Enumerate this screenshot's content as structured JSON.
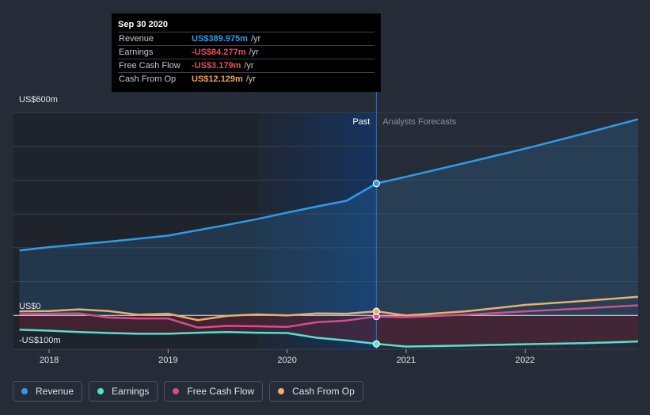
{
  "tooltip": {
    "date": "Sep 30 2020",
    "rows": [
      {
        "label": "Revenue",
        "value": "US$389.975m",
        "unit": "/yr",
        "color": "#2f9be6"
      },
      {
        "label": "Earnings",
        "value": "-US$84.277m",
        "unit": "/yr",
        "color": "#ec4b5e"
      },
      {
        "label": "Free Cash Flow",
        "value": "-US$3.179m",
        "unit": "/yr",
        "color": "#ec4b5e"
      },
      {
        "label": "Cash From Op",
        "value": "US$12.129m",
        "unit": "/yr",
        "color": "#e8a85a"
      }
    ]
  },
  "legend": [
    {
      "label": "Revenue",
      "color": "#2f9be6"
    },
    {
      "label": "Earnings",
      "color": "#55e0d0"
    },
    {
      "label": "Free Cash Flow",
      "color": "#d24f8c"
    },
    {
      "label": "Cash From Op",
      "color": "#e8b06a"
    }
  ],
  "chart_data": {
    "type": "line",
    "y_tick_labels": [
      "US$600m",
      "US$0",
      "-US$100m"
    ],
    "ylim": [
      -100,
      600
    ],
    "xlim": [
      2017.7,
      2022.95
    ],
    "x_tick_labels": [
      "2018",
      "2019",
      "2020",
      "2021",
      "2022"
    ],
    "x_ticks": [
      2018,
      2019,
      2020,
      2021,
      2022
    ],
    "region_labels": {
      "past": "Past",
      "forecast": "Analysts Forecasts"
    },
    "divider_x": 2020.75,
    "highlight_start_x": 2019.75,
    "grid": true,
    "series": [
      {
        "name": "Revenue",
        "color": "#2f9be6",
        "x": [
          2017.75,
          2018.0,
          2018.25,
          2018.5,
          2018.75,
          2019.0,
          2019.25,
          2019.5,
          2019.75,
          2020.0,
          2020.25,
          2020.5,
          2020.75,
          2021.0,
          2021.5,
          2022.0,
          2022.5,
          2022.95
        ],
        "y": [
          192,
          202,
          210,
          218,
          227,
          236,
          252,
          268,
          285,
          304,
          322,
          339,
          390,
          410,
          451,
          493,
          538,
          580
        ]
      },
      {
        "name": "Earnings",
        "color": "#55e0d0",
        "x": [
          2017.75,
          2018.0,
          2018.25,
          2018.5,
          2018.75,
          2019.0,
          2019.25,
          2019.5,
          2019.75,
          2020.0,
          2020.25,
          2020.5,
          2020.75,
          2021.0,
          2021.5,
          2022.0,
          2022.5,
          2022.95
        ],
        "y": [
          -42,
          -45,
          -49,
          -52,
          -54,
          -54,
          -51,
          -49,
          -51,
          -52,
          -66,
          -74,
          -84,
          -92,
          -89,
          -85,
          -82,
          -77
        ]
      },
      {
        "name": "Free Cash Flow",
        "color": "#d24f8c",
        "x": [
          2017.75,
          2018.0,
          2018.25,
          2018.5,
          2018.75,
          2019.0,
          2019.25,
          2019.5,
          2019.75,
          2020.0,
          2020.25,
          2020.5,
          2020.75,
          2021.0,
          2021.5,
          2022.0,
          2022.5,
          2022.95
        ],
        "y": [
          4,
          5,
          6,
          -6,
          -9,
          -9,
          -36,
          -31,
          -32,
          -34,
          -20,
          -15,
          -3,
          -5,
          2,
          12,
          21,
          30
        ]
      },
      {
        "name": "Cash From Op",
        "color": "#e8b06a",
        "x": [
          2017.75,
          2018.0,
          2018.25,
          2018.5,
          2018.75,
          2019.0,
          2019.25,
          2019.5,
          2019.75,
          2020.0,
          2020.25,
          2020.5,
          2020.75,
          2021.0,
          2021.5,
          2022.0,
          2022.5,
          2022.95
        ],
        "y": [
          12,
          13,
          18,
          13,
          2,
          5,
          -14,
          -1,
          3,
          0,
          6,
          5,
          12,
          0,
          12,
          31,
          43,
          55
        ]
      }
    ],
    "highlight_points": [
      {
        "series": "Revenue",
        "x": 2020.75,
        "y": 390,
        "color": "#2f9be6"
      },
      {
        "series": "Earnings",
        "x": 2020.75,
        "y": -84,
        "color": "#55e0d0"
      },
      {
        "series": "Free Cash Flow",
        "x": 2020.75,
        "y": -3,
        "color": "#d24f8c"
      },
      {
        "series": "Cash From Op",
        "x": 2020.75,
        "y": 12,
        "color": "#e8b06a"
      }
    ]
  }
}
